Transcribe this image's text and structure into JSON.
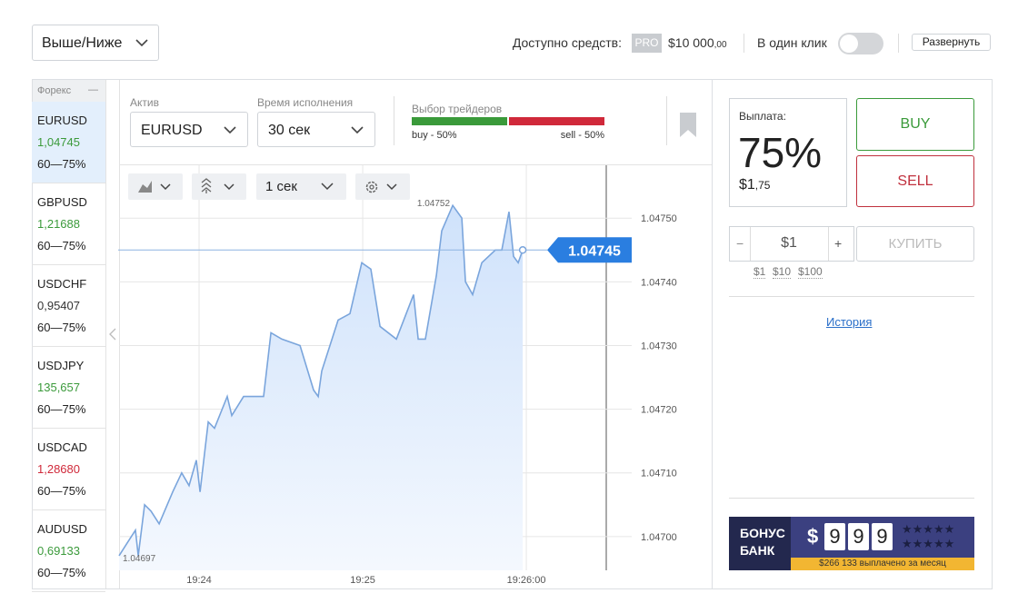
{
  "header": {
    "mode": "Выше/Ниже",
    "funds_label": "Доступно средств:",
    "pro_badge": "PRO",
    "funds": "$10 000",
    "funds_cents": ",00",
    "one_click": "В один клик",
    "expand": "Развернуть"
  },
  "sidebar": {
    "title": "Форекс",
    "collapse": "—",
    "items": [
      {
        "symbol": "EURUSD",
        "price": "1,04745",
        "payout": "60—75%",
        "color": "#3b9a3b"
      },
      {
        "symbol": "GBPUSD",
        "price": "1,21688",
        "payout": "60—75%",
        "color": "#3b9a3b"
      },
      {
        "symbol": "USDCHF",
        "price": "0,95407",
        "payout": "60—75%",
        "color": "#333333"
      },
      {
        "symbol": "USDJPY",
        "price": "135,657",
        "payout": "60—75%",
        "color": "#3b9a3b"
      },
      {
        "symbol": "USDCAD",
        "price": "1,28680",
        "payout": "60—75%",
        "color": "#d0293a"
      },
      {
        "symbol": "AUDUSD",
        "price": "0,69133",
        "payout": "60—75%",
        "color": "#3b9a3b"
      }
    ]
  },
  "panel": {
    "asset_label": "Актив",
    "asset": "EURUSD",
    "time_label": "Время исполнения",
    "time": "30 сек",
    "traders_label": "Выбор трейдеров",
    "buy_share": "buy - 50%",
    "sell_share": "sell - 50%",
    "interval": "1 сек"
  },
  "price_chart": {
    "type": "line",
    "color": "#7aa5dc",
    "x": [
      23.511,
      23.561,
      23.611,
      23.628,
      23.667,
      23.706,
      23.756,
      23.839,
      23.894,
      23.939,
      23.983,
      24.006,
      24.056,
      24.094,
      24.172,
      24.2,
      24.272,
      24.394,
      24.439,
      24.506,
      24.617,
      24.7,
      24.728,
      24.75,
      24.85,
      24.922,
      24.994,
      25.05,
      25.106,
      25.206,
      25.311,
      25.339,
      25.383,
      25.45,
      25.483,
      25.55,
      25.606,
      25.628,
      25.672,
      25.728,
      25.811,
      25.85,
      25.894,
      25.922,
      25.95,
      25.978
    ],
    "values": [
      1.04697,
      1.04699,
      1.04701,
      1.04697,
      1.04705,
      1.04704,
      1.04702,
      1.04707,
      1.0471,
      1.04708,
      1.04712,
      1.04707,
      1.04718,
      1.04717,
      1.04722,
      1.04719,
      1.04722,
      1.04722,
      1.04732,
      1.04731,
      1.0473,
      1.04723,
      1.04722,
      1.04726,
      1.04734,
      1.04735,
      1.04743,
      1.04742,
      1.04733,
      1.04731,
      1.04738,
      1.04731,
      1.04731,
      1.04741,
      1.04748,
      1.04752,
      1.0475,
      1.0474,
      1.04738,
      1.04743,
      1.04745,
      1.04745,
      1.04751,
      1.04744,
      1.04743,
      1.04745
    ],
    "xlim": [
      23.511,
      26.644
    ],
    "ylim": [
      1.046947,
      1.047583
    ],
    "xticks": [
      {
        "value": 24,
        "label": "19:24"
      },
      {
        "value": 25,
        "label": "19:25"
      },
      {
        "value": 26,
        "label": "19:26:00"
      }
    ],
    "yticks": [
      {
        "value": 1.047,
        "label": "1.04700"
      },
      {
        "value": 1.0471,
        "label": "1.04710"
      },
      {
        "value": 1.0472,
        "label": "1.04720"
      },
      {
        "value": 1.0473,
        "label": "1.04730"
      },
      {
        "value": 1.0474,
        "label": "1.04740"
      },
      {
        "value": 1.0475,
        "label": "1.04750"
      }
    ],
    "min_label": "1.04697",
    "max_label": "1.04752",
    "current_label": "1.04745"
  },
  "trade": {
    "payout_label": "Выплата:",
    "payout": "75%",
    "profit": "$1",
    "profit_cents": ",75",
    "buy": "BUY",
    "sell": "SELL",
    "minus": "−",
    "amount": "$1",
    "plus": "+",
    "purchase": "КУПИТЬ",
    "quick_amounts": [
      "$1",
      "$10",
      "$100"
    ],
    "history": "История"
  },
  "banner": {
    "line1": "БОНУС",
    "line2": "БАНК",
    "currency": "$",
    "digits": [
      "9",
      "9",
      "9"
    ],
    "caption": "$266 133 выплачено за месяц"
  }
}
